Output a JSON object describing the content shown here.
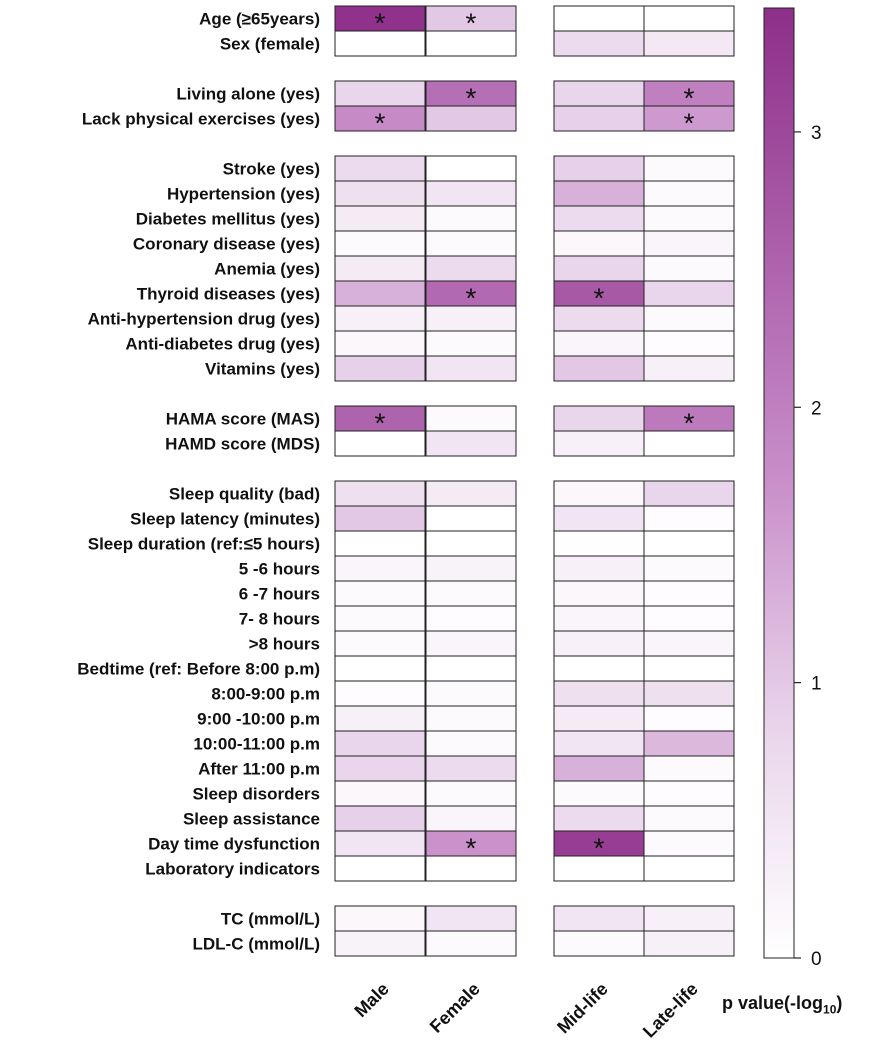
{
  "chart_data": {
    "type": "heatmap",
    "columns": [
      "Male",
      "Female",
      "Mid-life",
      "Late-life"
    ],
    "rows": [
      {
        "label": "Age (≥65years)",
        "values": [
          3.4,
          1.0,
          0.0,
          0.0
        ],
        "sig": [
          true,
          true,
          false,
          false
        ]
      },
      {
        "label": "Sex (female)",
        "values": [
          0.0,
          0.0,
          0.7,
          0.45
        ],
        "sig": [
          false,
          false,
          false,
          false
        ]
      },
      {
        "label": "Living alone (yes)",
        "values": [
          0.8,
          2.3,
          0.8,
          2.0
        ],
        "sig": [
          false,
          true,
          false,
          true
        ]
      },
      {
        "label": "Lack physical exercises (yes)",
        "values": [
          1.8,
          1.0,
          0.9,
          1.6
        ],
        "sig": [
          true,
          false,
          false,
          true
        ]
      },
      {
        "label": "Stroke (yes)",
        "values": [
          0.7,
          0.0,
          0.9,
          0.1
        ],
        "sig": [
          false,
          false,
          false,
          false
        ]
      },
      {
        "label": "Hypertension (yes)",
        "values": [
          0.6,
          0.5,
          1.3,
          0.1
        ],
        "sig": [
          false,
          false,
          false,
          false
        ]
      },
      {
        "label": "Diabetes mellitus (yes)",
        "values": [
          0.4,
          0.1,
          0.7,
          0.1
        ],
        "sig": [
          false,
          false,
          false,
          false
        ]
      },
      {
        "label": "Coronary disease (yes)",
        "values": [
          0.1,
          0.1,
          0.15,
          0.2
        ],
        "sig": [
          false,
          false,
          false,
          false
        ]
      },
      {
        "label": "Anemia (yes)",
        "values": [
          0.4,
          0.7,
          0.8,
          0.1
        ],
        "sig": [
          false,
          false,
          false,
          false
        ]
      },
      {
        "label": "Thyroid diseases (yes)",
        "values": [
          1.3,
          2.4,
          2.7,
          0.8
        ],
        "sig": [
          false,
          true,
          true,
          false
        ]
      },
      {
        "label": "Anti-hypertension drug (yes)",
        "values": [
          0.3,
          0.3,
          0.7,
          0.1
        ],
        "sig": [
          false,
          false,
          false,
          false
        ]
      },
      {
        "label": "Anti-diabetes drug (yes)",
        "values": [
          0.15,
          0.1,
          0.2,
          0.05
        ],
        "sig": [
          false,
          false,
          false,
          false
        ]
      },
      {
        "label": "Vitamins (yes)",
        "values": [
          0.9,
          0.5,
          1.0,
          0.3
        ],
        "sig": [
          false,
          false,
          false,
          false
        ]
      },
      {
        "label": "HAMA score (MAS)",
        "values": [
          2.5,
          0.1,
          0.8,
          2.1
        ],
        "sig": [
          true,
          false,
          false,
          true
        ]
      },
      {
        "label": "HAMD score (MDS)",
        "values": [
          0.0,
          0.5,
          0.3,
          0.0
        ],
        "sig": [
          false,
          false,
          false,
          false
        ]
      },
      {
        "label": "Sleep quality (bad)",
        "values": [
          0.6,
          0.4,
          0.15,
          0.8
        ],
        "sig": [
          false,
          false,
          false,
          false
        ]
      },
      {
        "label": "Sleep latency (minutes)",
        "values": [
          1.0,
          0.0,
          0.5,
          0.05
        ],
        "sig": [
          false,
          false,
          false,
          false
        ]
      },
      {
        "label": "Sleep duration (ref:≤5 hours)",
        "values": [
          0.0,
          0.0,
          0.0,
          0.0
        ],
        "sig": [
          false,
          false,
          false,
          false
        ]
      },
      {
        "label": "5 -6 hours",
        "values": [
          0.2,
          0.25,
          0.3,
          0.1
        ],
        "sig": [
          false,
          false,
          false,
          false
        ]
      },
      {
        "label": "6 -7 hours",
        "values": [
          0.1,
          0.1,
          0.15,
          0.05
        ],
        "sig": [
          false,
          false,
          false,
          false
        ]
      },
      {
        "label": "7- 8 hours",
        "values": [
          0.1,
          0.05,
          0.2,
          0.05
        ],
        "sig": [
          false,
          false,
          false,
          false
        ]
      },
      {
        "label": ">8 hours",
        "values": [
          0.1,
          0.2,
          0.3,
          0.2
        ],
        "sig": [
          false,
          false,
          false,
          false
        ]
      },
      {
        "label": "Bedtime (ref: Before 8:00 p.m)",
        "values": [
          0.0,
          0.0,
          0.0,
          0.0
        ],
        "sig": [
          false,
          false,
          false,
          false
        ]
      },
      {
        "label": "8:00-9:00 p.m",
        "values": [
          0.05,
          0.1,
          0.6,
          0.6
        ],
        "sig": [
          false,
          false,
          false,
          false
        ]
      },
      {
        "label": "9:00 -10:00 p.m",
        "values": [
          0.3,
          0.1,
          0.4,
          0.05
        ],
        "sig": [
          false,
          false,
          false,
          false
        ]
      },
      {
        "label": "10:00-11:00 p.m",
        "values": [
          0.8,
          0.1,
          0.5,
          1.2
        ],
        "sig": [
          false,
          false,
          false,
          false
        ]
      },
      {
        "label": "After 11:00 p.m",
        "values": [
          0.8,
          0.7,
          1.3,
          0.1
        ],
        "sig": [
          false,
          false,
          false,
          false
        ]
      },
      {
        "label": "Sleep disorders",
        "values": [
          0.15,
          0.1,
          0.1,
          0.05
        ],
        "sig": [
          false,
          false,
          false,
          false
        ]
      },
      {
        "label": "Sleep assistance",
        "values": [
          0.9,
          0.2,
          0.7,
          0.1
        ],
        "sig": [
          false,
          false,
          false,
          false
        ]
      },
      {
        "label": "Day time dysfunction",
        "values": [
          0.5,
          1.7,
          3.2,
          0.1
        ],
        "sig": [
          false,
          true,
          true,
          false
        ]
      },
      {
        "label": "Laboratory indicators",
        "values": [
          0.0,
          0.0,
          0.0,
          0.0
        ],
        "sig": [
          false,
          false,
          false,
          false
        ]
      },
      {
        "label": "TC (mmol/L)",
        "values": [
          0.15,
          0.5,
          0.5,
          0.3
        ],
        "sig": [
          false,
          false,
          false,
          false
        ]
      },
      {
        "label": "LDL-C (mmol/L)",
        "values": [
          0.25,
          0.1,
          0.1,
          0.3
        ],
        "sig": [
          false,
          false,
          false,
          false
        ]
      }
    ],
    "colorbar": {
      "range": [
        0,
        3.45
      ],
      "ticks": [
        0,
        1,
        2,
        3
      ],
      "title_main": "p value(-log",
      "title_sub": "10",
      "title_end": ")",
      "color_low": "#ffffff",
      "color_high": "#8e2f8a"
    },
    "significance_marker": "*"
  }
}
